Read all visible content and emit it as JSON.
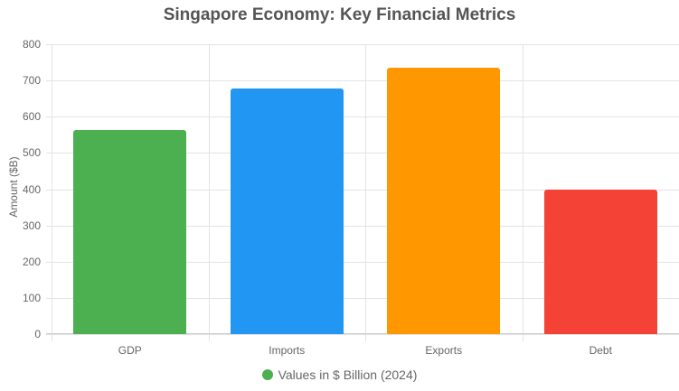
{
  "chart_data": {
    "type": "bar",
    "title": "Singapore Economy: Key Financial Metrics",
    "xlabel": "",
    "ylabel": "Amount ($B)",
    "categories": [
      "GDP",
      "Imports",
      "Exports",
      "Debt"
    ],
    "values": [
      564,
      678,
      736,
      400
    ],
    "colors": [
      "#4caf50",
      "#2196f3",
      "#ff9800",
      "#f44336"
    ],
    "ylim": [
      0,
      800
    ],
    "yticks": [
      0,
      100,
      200,
      300,
      400,
      500,
      600,
      700,
      800
    ],
    "grid": true,
    "legend": {
      "position": "bottom",
      "entries": [
        "Values in $ Billion (2024)"
      ]
    }
  },
  "legend_label": "Values in $ Billion (2024)",
  "legend_color": "#4caf50"
}
